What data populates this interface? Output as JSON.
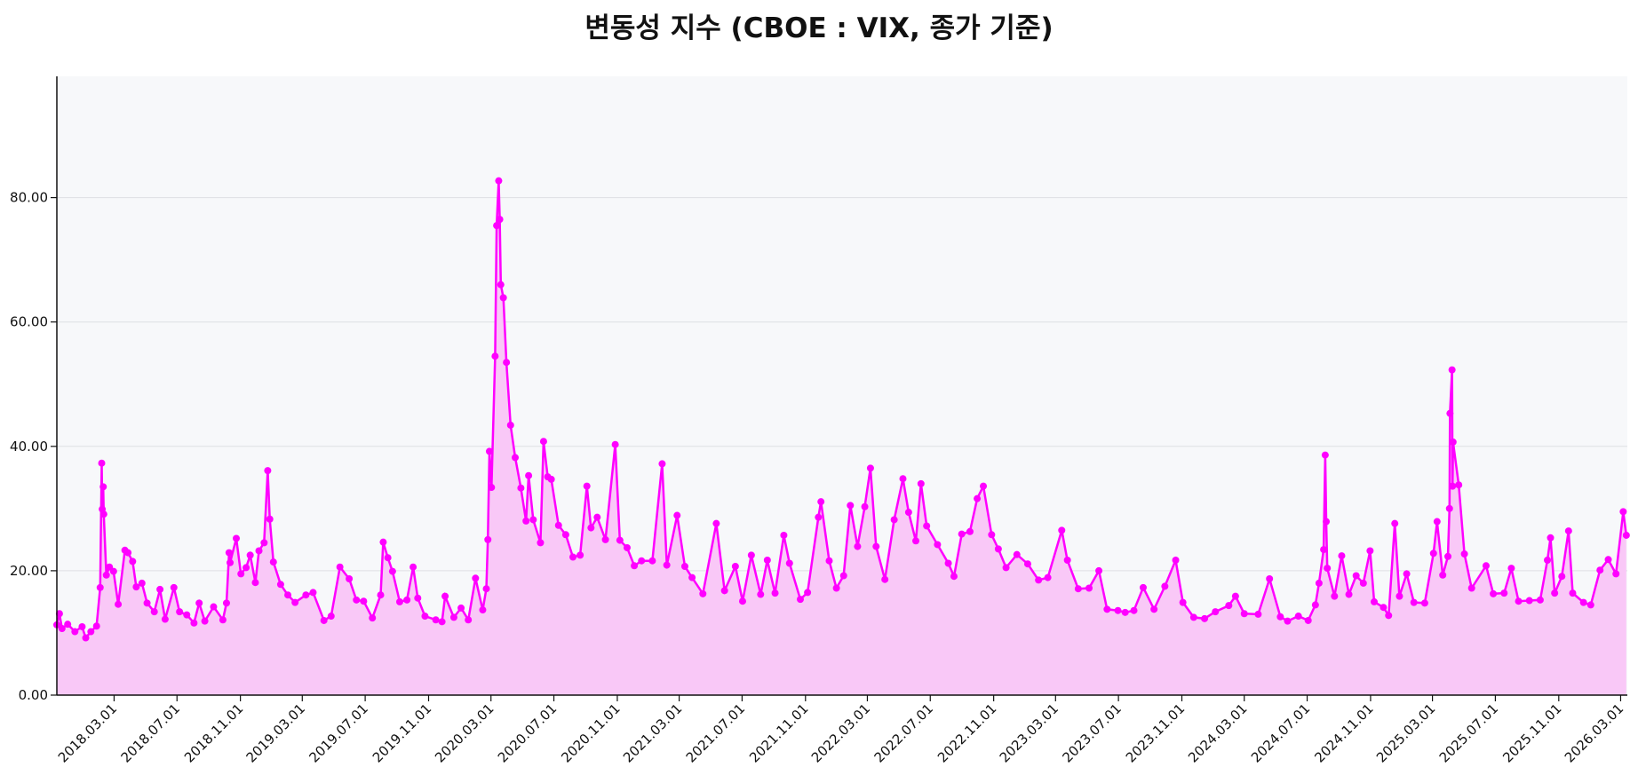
{
  "chart_data": {
    "type": "area",
    "title": "변동성 지수 (CBOE : VIX, 종가 기준)",
    "xlabel": "",
    "ylabel": "",
    "ylim": [
      0,
      99.5
    ],
    "xlim": [
      "2017-11-10",
      "2026-03-14"
    ],
    "grid": "y",
    "colors": {
      "line": "#ff00ff",
      "fill": "#f9c8f7",
      "background": "#f7f8fa",
      "grid": "#dedfe3"
    },
    "y_ticks": [
      "0.00",
      "20.00",
      "40.00",
      "60.00",
      "80.00"
    ],
    "y_tick_values": [
      0,
      20,
      40,
      60,
      80
    ],
    "x_ticks": [
      "2018.03.01",
      "2018.07.01",
      "2018.11.01",
      "2019.03.01",
      "2019.07.01",
      "2019.11.01",
      "2020.03.01",
      "2020.07.01",
      "2020.11.01",
      "2021.03.01",
      "2021.07.01",
      "2021.11.01",
      "2022.03.01",
      "2022.07.01",
      "2022.11.01",
      "2023.03.01",
      "2023.07.01",
      "2023.11.01",
      "2024.03.01",
      "2024.07.01",
      "2024.11.01",
      "2025.03.01",
      "2025.07.01",
      "2025.11.01",
      "2026.03.01"
    ],
    "series": [
      {
        "name": "VIX",
        "points": [
          [
            "2017-11-10",
            11.3
          ],
          [
            "2017-11-15",
            13.1
          ],
          [
            "2017-11-20",
            10.7
          ],
          [
            "2017-12-01",
            11.4
          ],
          [
            "2017-12-15",
            10.2
          ],
          [
            "2017-12-29",
            11.0
          ],
          [
            "2018-01-05",
            9.2
          ],
          [
            "2018-01-15",
            10.2
          ],
          [
            "2018-01-26",
            11.1
          ],
          [
            "2018-02-02",
            17.3
          ],
          [
            "2018-02-05",
            37.3
          ],
          [
            "2018-02-06",
            29.9
          ],
          [
            "2018-02-08",
            33.5
          ],
          [
            "2018-02-09",
            29.1
          ],
          [
            "2018-02-14",
            19.3
          ],
          [
            "2018-02-20",
            20.6
          ],
          [
            "2018-02-28",
            19.9
          ],
          [
            "2018-03-09",
            14.6
          ],
          [
            "2018-03-22",
            23.3
          ],
          [
            "2018-03-28",
            22.9
          ],
          [
            "2018-04-06",
            21.5
          ],
          [
            "2018-04-13",
            17.4
          ],
          [
            "2018-04-24",
            18.0
          ],
          [
            "2018-05-04",
            14.8
          ],
          [
            "2018-05-18",
            13.4
          ],
          [
            "2018-05-29",
            17.0
          ],
          [
            "2018-06-08",
            12.2
          ],
          [
            "2018-06-25",
            17.3
          ],
          [
            "2018-07-06",
            13.4
          ],
          [
            "2018-07-20",
            12.9
          ],
          [
            "2018-08-03",
            11.6
          ],
          [
            "2018-08-13",
            14.8
          ],
          [
            "2018-08-24",
            11.9
          ],
          [
            "2018-09-10",
            14.2
          ],
          [
            "2018-09-28",
            12.1
          ],
          [
            "2018-10-05",
            14.8
          ],
          [
            "2018-10-10",
            22.9
          ],
          [
            "2018-10-12",
            21.3
          ],
          [
            "2018-10-24",
            25.2
          ],
          [
            "2018-11-02",
            19.5
          ],
          [
            "2018-11-12",
            20.5
          ],
          [
            "2018-11-20",
            22.5
          ],
          [
            "2018-11-30",
            18.1
          ],
          [
            "2018-12-07",
            23.2
          ],
          [
            "2018-12-17",
            24.5
          ],
          [
            "2018-12-24",
            36.1
          ],
          [
            "2018-12-28",
            28.3
          ],
          [
            "2019-01-04",
            21.4
          ],
          [
            "2019-01-18",
            17.8
          ],
          [
            "2019-02-01",
            16.1
          ],
          [
            "2019-02-15",
            14.9
          ],
          [
            "2019-03-08",
            16.1
          ],
          [
            "2019-03-22",
            16.5
          ],
          [
            "2019-04-12",
            12.0
          ],
          [
            "2019-04-26",
            12.7
          ],
          [
            "2019-05-13",
            20.6
          ],
          [
            "2019-05-31",
            18.7
          ],
          [
            "2019-06-14",
            15.3
          ],
          [
            "2019-06-28",
            15.1
          ],
          [
            "2019-07-15",
            12.4
          ],
          [
            "2019-07-31",
            16.1
          ],
          [
            "2019-08-05",
            24.6
          ],
          [
            "2019-08-14",
            22.1
          ],
          [
            "2019-08-23",
            19.9
          ],
          [
            "2019-09-06",
            15.0
          ],
          [
            "2019-09-20",
            15.3
          ],
          [
            "2019-10-02",
            20.6
          ],
          [
            "2019-10-11",
            15.6
          ],
          [
            "2019-10-25",
            12.7
          ],
          [
            "2019-11-15",
            12.1
          ],
          [
            "2019-11-27",
            11.8
          ],
          [
            "2019-12-03",
            15.9
          ],
          [
            "2019-12-20",
            12.5
          ],
          [
            "2020-01-03",
            14.0
          ],
          [
            "2020-01-17",
            12.1
          ],
          [
            "2020-01-31",
            18.8
          ],
          [
            "2020-02-14",
            13.7
          ],
          [
            "2020-02-21",
            17.1
          ],
          [
            "2020-02-24",
            25.0
          ],
          [
            "2020-02-27",
            39.2
          ],
          [
            "2020-03-02",
            33.4
          ],
          [
            "2020-03-09",
            54.5
          ],
          [
            "2020-03-12",
            75.5
          ],
          [
            "2020-03-16",
            82.7
          ],
          [
            "2020-03-18",
            76.5
          ],
          [
            "2020-03-20",
            66.0
          ],
          [
            "2020-03-25",
            63.9
          ],
          [
            "2020-03-31",
            53.5
          ],
          [
            "2020-04-08",
            43.4
          ],
          [
            "2020-04-17",
            38.2
          ],
          [
            "2020-04-28",
            33.3
          ],
          [
            "2020-05-08",
            28.0
          ],
          [
            "2020-05-13",
            35.3
          ],
          [
            "2020-05-22",
            28.2
          ],
          [
            "2020-06-05",
            24.5
          ],
          [
            "2020-06-11",
            40.8
          ],
          [
            "2020-06-19",
            35.1
          ],
          [
            "2020-06-26",
            34.7
          ],
          [
            "2020-07-10",
            27.3
          ],
          [
            "2020-07-24",
            25.8
          ],
          [
            "2020-08-07",
            22.2
          ],
          [
            "2020-08-21",
            22.5
          ],
          [
            "2020-09-03",
            33.6
          ],
          [
            "2020-09-11",
            26.9
          ],
          [
            "2020-09-23",
            28.6
          ],
          [
            "2020-10-09",
            25.0
          ],
          [
            "2020-10-28",
            40.3
          ],
          [
            "2020-11-06",
            24.9
          ],
          [
            "2020-11-20",
            23.7
          ],
          [
            "2020-12-04",
            20.8
          ],
          [
            "2020-12-18",
            21.6
          ],
          [
            "2021-01-08",
            21.6
          ],
          [
            "2021-01-27",
            37.2
          ],
          [
            "2021-02-05",
            20.9
          ],
          [
            "2021-02-25",
            28.9
          ],
          [
            "2021-03-12",
            20.7
          ],
          [
            "2021-03-26",
            18.9
          ],
          [
            "2021-04-16",
            16.3
          ],
          [
            "2021-05-12",
            27.6
          ],
          [
            "2021-05-28",
            16.8
          ],
          [
            "2021-06-18",
            20.7
          ],
          [
            "2021-07-02",
            15.1
          ],
          [
            "2021-07-19",
            22.5
          ],
          [
            "2021-08-06",
            16.2
          ],
          [
            "2021-08-19",
            21.7
          ],
          [
            "2021-09-03",
            16.4
          ],
          [
            "2021-09-20",
            25.7
          ],
          [
            "2021-10-01",
            21.2
          ],
          [
            "2021-10-22",
            15.4
          ],
          [
            "2021-11-05",
            16.5
          ],
          [
            "2021-11-26",
            28.6
          ],
          [
            "2021-12-01",
            31.1
          ],
          [
            "2021-12-17",
            21.6
          ],
          [
            "2021-12-31",
            17.2
          ],
          [
            "2022-01-14",
            19.2
          ],
          [
            "2022-01-27",
            30.5
          ],
          [
            "2022-02-10",
            23.9
          ],
          [
            "2022-02-24",
            30.3
          ],
          [
            "2022-03-07",
            36.5
          ],
          [
            "2022-03-18",
            23.9
          ],
          [
            "2022-04-04",
            18.6
          ],
          [
            "2022-04-22",
            28.2
          ],
          [
            "2022-05-09",
            34.8
          ],
          [
            "2022-05-20",
            29.4
          ],
          [
            "2022-06-03",
            24.8
          ],
          [
            "2022-06-13",
            34.0
          ],
          [
            "2022-06-24",
            27.2
          ],
          [
            "2022-07-15",
            24.2
          ],
          [
            "2022-08-05",
            21.2
          ],
          [
            "2022-08-16",
            19.1
          ],
          [
            "2022-08-31",
            25.9
          ],
          [
            "2022-09-16",
            26.3
          ],
          [
            "2022-09-30",
            31.6
          ],
          [
            "2022-10-12",
            33.6
          ],
          [
            "2022-10-28",
            25.8
          ],
          [
            "2022-11-10",
            23.5
          ],
          [
            "2022-11-25",
            20.5
          ],
          [
            "2022-12-16",
            22.6
          ],
          [
            "2023-01-06",
            21.1
          ],
          [
            "2023-01-27",
            18.5
          ],
          [
            "2023-02-14",
            18.9
          ],
          [
            "2023-03-13",
            26.5
          ],
          [
            "2023-03-24",
            21.7
          ],
          [
            "2023-04-14",
            17.1
          ],
          [
            "2023-05-05",
            17.2
          ],
          [
            "2023-05-24",
            20.0
          ],
          [
            "2023-06-09",
            13.8
          ],
          [
            "2023-06-30",
            13.6
          ],
          [
            "2023-07-14",
            13.3
          ],
          [
            "2023-07-31",
            13.6
          ],
          [
            "2023-08-18",
            17.3
          ],
          [
            "2023-09-08",
            13.8
          ],
          [
            "2023-09-29",
            17.5
          ],
          [
            "2023-10-20",
            21.7
          ],
          [
            "2023-11-03",
            14.9
          ],
          [
            "2023-11-24",
            12.5
          ],
          [
            "2023-12-15",
            12.3
          ],
          [
            "2024-01-05",
            13.4
          ],
          [
            "2024-01-31",
            14.4
          ],
          [
            "2024-02-13",
            15.9
          ],
          [
            "2024-03-01",
            13.1
          ],
          [
            "2024-03-28",
            13.0
          ],
          [
            "2024-04-19",
            18.7
          ],
          [
            "2024-05-10",
            12.6
          ],
          [
            "2024-05-24",
            11.9
          ],
          [
            "2024-06-14",
            12.7
          ],
          [
            "2024-07-03",
            12.0
          ],
          [
            "2024-07-17",
            14.5
          ],
          [
            "2024-07-24",
            18.0
          ],
          [
            "2024-08-02",
            23.4
          ],
          [
            "2024-08-05",
            38.6
          ],
          [
            "2024-08-07",
            27.9
          ],
          [
            "2024-08-09",
            20.4
          ],
          [
            "2024-08-23",
            15.9
          ],
          [
            "2024-09-06",
            22.4
          ],
          [
            "2024-09-20",
            16.2
          ],
          [
            "2024-10-04",
            19.2
          ],
          [
            "2024-10-18",
            18.0
          ],
          [
            "2024-10-31",
            23.2
          ],
          [
            "2024-11-08",
            15.0
          ],
          [
            "2024-11-26",
            14.1
          ],
          [
            "2024-12-06",
            12.8
          ],
          [
            "2024-12-18",
            27.6
          ],
          [
            "2024-12-27",
            15.9
          ],
          [
            "2025-01-10",
            19.5
          ],
          [
            "2025-01-24",
            14.9
          ],
          [
            "2025-02-14",
            14.8
          ],
          [
            "2025-03-03",
            22.8
          ],
          [
            "2025-03-10",
            27.9
          ],
          [
            "2025-03-21",
            19.3
          ],
          [
            "2025-03-31",
            22.3
          ],
          [
            "2025-04-03",
            30.0
          ],
          [
            "2025-04-04",
            45.3
          ],
          [
            "2025-04-08",
            52.3
          ],
          [
            "2025-04-09",
            33.6
          ],
          [
            "2025-04-10",
            40.7
          ],
          [
            "2025-04-21",
            33.8
          ],
          [
            "2025-05-02",
            22.7
          ],
          [
            "2025-05-16",
            17.2
          ],
          [
            "2025-06-13",
            20.8
          ],
          [
            "2025-06-27",
            16.3
          ],
          [
            "2025-07-18",
            16.4
          ],
          [
            "2025-08-01",
            20.4
          ],
          [
            "2025-08-15",
            15.1
          ],
          [
            "2025-09-05",
            15.2
          ],
          [
            "2025-09-26",
            15.3
          ],
          [
            "2025-10-10",
            21.7
          ],
          [
            "2025-10-16",
            25.3
          ],
          [
            "2025-10-24",
            16.4
          ],
          [
            "2025-11-07",
            19.1
          ],
          [
            "2025-11-20",
            26.4
          ],
          [
            "2025-11-28",
            16.4
          ],
          [
            "2025-12-19",
            14.9
          ],
          [
            "2026-01-02",
            14.5
          ],
          [
            "2026-01-20",
            20.1
          ],
          [
            "2026-02-05",
            21.8
          ],
          [
            "2026-02-20",
            19.5
          ],
          [
            "2026-03-06",
            29.5
          ],
          [
            "2026-03-12",
            25.7
          ]
        ]
      }
    ]
  }
}
